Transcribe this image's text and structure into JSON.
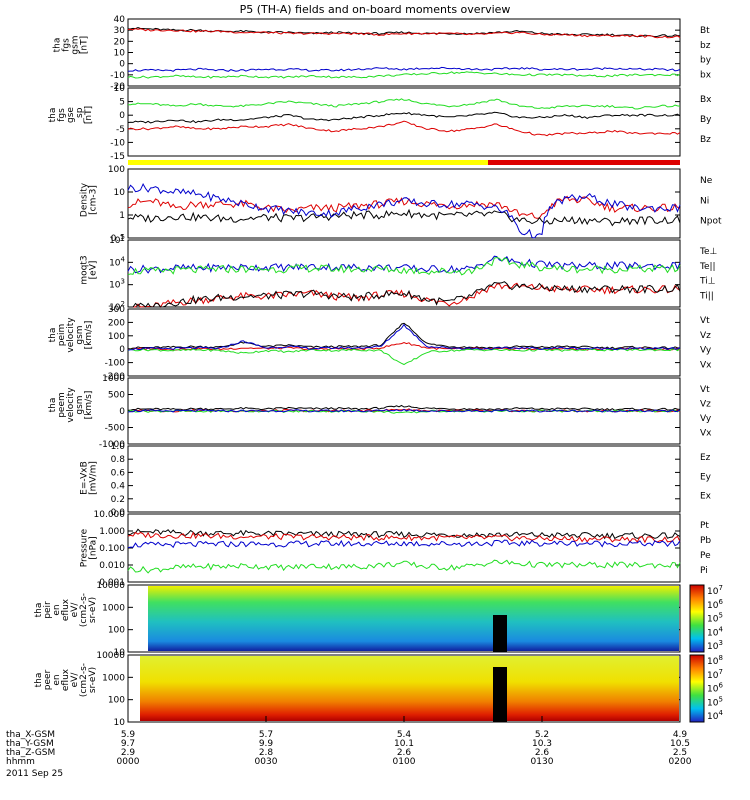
{
  "title": "P5 (TH-A) fields and on-board moments overview",
  "colors": {
    "black": "#000000",
    "red": "#dd0000",
    "green": "#22dd22",
    "blue": "#0000cc",
    "yellow": "#ffff00"
  },
  "chart_data": [
    {
      "type": "line",
      "id": "p1",
      "ylabel": "tha\nfgs\ngsm\n[nT]",
      "ylim": [
        -20,
        40
      ],
      "ticks": [
        "40",
        "30",
        "20",
        "10",
        "0",
        "-10",
        "-20"
      ],
      "series": [
        {
          "name": "Bt",
          "color": "black",
          "values": [
            32,
            31,
            30,
            30,
            29,
            29,
            28,
            28,
            27,
            28,
            27,
            27,
            28,
            27,
            27,
            27,
            28,
            29,
            27,
            26,
            26,
            26,
            25,
            25,
            25
          ]
        },
        {
          "name": "bz",
          "color": "red",
          "values": [
            31,
            30,
            30,
            29,
            29,
            28,
            28,
            27,
            27,
            27,
            27,
            26,
            27,
            27,
            27,
            26,
            27,
            28,
            26,
            26,
            25,
            25,
            25,
            24,
            24
          ]
        },
        {
          "name": "by",
          "color": "green",
          "values": [
            -12,
            -12,
            -11,
            -12,
            -12,
            -11,
            -12,
            -12,
            -11,
            -12,
            -12,
            -11,
            -10,
            -9,
            -8,
            -8,
            -9,
            -10,
            -10,
            -10,
            -11,
            -11,
            -10,
            -10,
            -10
          ]
        },
        {
          "name": "bx",
          "color": "blue",
          "values": [
            -6,
            -6,
            -6,
            -5,
            -6,
            -6,
            -5,
            -5,
            -6,
            -6,
            -5,
            -4,
            -5,
            -4,
            -4,
            -5,
            -5,
            -4,
            -5,
            -5,
            -5,
            -4,
            -5,
            -5,
            -6
          ]
        }
      ]
    },
    {
      "type": "line",
      "id": "p2",
      "ylabel": "tha\nfgs\ngse\n_sp\n[nT]",
      "ylim": [
        -20,
        10
      ],
      "ticks": [
        "10",
        "5",
        "0",
        "-5",
        "-10",
        "-15"
      ],
      "series": [
        {
          "name": "Bx",
          "color": "green",
          "values": [
            3,
            3,
            2,
            3,
            2,
            2,
            3,
            4,
            3,
            2,
            3,
            4,
            5,
            3,
            2,
            3,
            5,
            2,
            1,
            2,
            2,
            2,
            1,
            2,
            2
          ]
        },
        {
          "name": "By",
          "color": "black",
          "values": [
            -5,
            -5,
            -4,
            -5,
            -4,
            -4,
            -3,
            -2,
            -4,
            -4,
            -3,
            -2,
            -1,
            -2,
            -3,
            -2,
            -1,
            -3,
            -3,
            -2,
            -3,
            -2,
            -2,
            -2,
            -2
          ]
        },
        {
          "name": "Bz",
          "color": "red",
          "values": [
            -8,
            -8,
            -7,
            -8,
            -8,
            -7,
            -7,
            -6,
            -8,
            -9,
            -8,
            -7,
            -5,
            -8,
            -9,
            -8,
            -6,
            -9,
            -11,
            -10,
            -10,
            -9,
            -10,
            -10,
            -10
          ]
        }
      ]
    },
    {
      "type": "line",
      "id": "p3",
      "ylabel": "Density\n[cm-3]",
      "yscale": "log",
      "ylim": [
        0.1,
        100
      ],
      "ticks": [
        "100",
        "10",
        "1",
        "0.1"
      ],
      "series": [
        {
          "name": "Ne",
          "color": "red",
          "values": [
            3,
            4,
            2,
            3,
            3,
            3,
            2,
            1.5,
            2,
            2,
            2.5,
            3,
            4,
            3,
            2.5,
            3,
            3,
            1,
            0.8,
            5,
            4,
            2,
            2,
            2,
            2
          ]
        },
        {
          "name": "Ni",
          "color": "black",
          "values": [
            0.8,
            0.7,
            0.9,
            0.8,
            0.7,
            0.7,
            0.8,
            0.7,
            0.8,
            0.9,
            1,
            1,
            1.2,
            1,
            0.9,
            1,
            1.1,
            0.6,
            0.5,
            0.6,
            0.6,
            0.5,
            0.6,
            0.6,
            0.6
          ]
        },
        {
          "name": "Npot",
          "color": "blue",
          "values": [
            15,
            15,
            10,
            8,
            5,
            3,
            2,
            1.5,
            1.2,
            1.2,
            2,
            3,
            4,
            3,
            3,
            3,
            2,
            0.2,
            0.1,
            5,
            6,
            3,
            2,
            2,
            2
          ]
        }
      ]
    },
    {
      "type": "line",
      "id": "p4",
      "ylabel": "moqt3\n[eV]",
      "yscale": "log",
      "ylim": [
        100,
        100000
      ],
      "ticks": [
        "10^5",
        "10^4",
        "10^3",
        "10^2"
      ],
      "series": [
        {
          "name": "Te⊥",
          "color": "red",
          "values": [
            90,
            100,
            150,
            200,
            250,
            300,
            300,
            350,
            400,
            300,
            250,
            350,
            400,
            200,
            150,
            300,
            900,
            800,
            700,
            600,
            600,
            600,
            600,
            600,
            600
          ]
        },
        {
          "name": "Te||",
          "color": "black",
          "values": [
            100,
            110,
            160,
            210,
            260,
            310,
            310,
            360,
            410,
            310,
            260,
            360,
            410,
            210,
            160,
            310,
            950,
            850,
            750,
            650,
            650,
            650,
            650,
            650,
            650
          ]
        },
        {
          "name": "Ti⊥",
          "color": "blue",
          "values": [
            5000,
            5000,
            5500,
            5500,
            6000,
            6000,
            6000,
            6000,
            6500,
            6000,
            6000,
            6000,
            5500,
            5000,
            5000,
            5000,
            15000,
            10000,
            8000,
            7000,
            7000,
            7000,
            7000,
            7000,
            7000
          ]
        },
        {
          "name": "Ti||",
          "color": "green",
          "values": [
            4000,
            4000,
            4500,
            4500,
            5000,
            5000,
            5000,
            5000,
            5500,
            5000,
            5000,
            5000,
            4500,
            4000,
            4000,
            4000,
            12000,
            8000,
            6000,
            5000,
            5000,
            5000,
            5000,
            5000,
            5000
          ]
        }
      ]
    },
    {
      "type": "line",
      "id": "p5",
      "ylabel": "tha\npeim\nvelocity\ngsm\n[km/s]",
      "ylim": [
        -200,
        300
      ],
      "ticks": [
        "300",
        "200",
        "100",
        "0",
        "-100",
        "-200"
      ],
      "series": [
        {
          "name": "Vt",
          "color": "black",
          "values": [
            10,
            12,
            15,
            20,
            15,
            50,
            20,
            30,
            15,
            20,
            20,
            30,
            200,
            40,
            20,
            15,
            10,
            20,
            15,
            20,
            15,
            10,
            15,
            10,
            10
          ]
        },
        {
          "name": "Vz",
          "color": "red",
          "values": [
            0,
            5,
            0,
            5,
            0,
            10,
            5,
            10,
            0,
            5,
            0,
            10,
            50,
            10,
            0,
            5,
            0,
            5,
            0,
            5,
            0,
            0,
            5,
            0,
            0
          ]
        },
        {
          "name": "Vy",
          "color": "green",
          "values": [
            -5,
            -5,
            -10,
            -5,
            -10,
            -30,
            -10,
            -20,
            -5,
            -10,
            -5,
            -10,
            -120,
            -20,
            -10,
            -5,
            -5,
            -10,
            -5,
            -10,
            -5,
            -5,
            -5,
            -5,
            -5
          ]
        },
        {
          "name": "Vx",
          "color": "blue",
          "values": [
            0,
            5,
            5,
            10,
            5,
            60,
            10,
            20,
            5,
            10,
            10,
            20,
            180,
            20,
            10,
            5,
            5,
            10,
            5,
            10,
            5,
            5,
            5,
            5,
            5
          ]
        }
      ]
    },
    {
      "type": "line",
      "id": "p6",
      "ylabel": "tha\npeem\nvelocity\ngsm\n[km/s]",
      "ylim": [
        -1000,
        1000
      ],
      "ticks": [
        "1000",
        "500",
        "0",
        "-500",
        "-1000"
      ],
      "series": [
        {
          "name": "Vt",
          "color": "black",
          "values": [
            50,
            60,
            50,
            70,
            60,
            80,
            60,
            90,
            70,
            80,
            60,
            90,
            150,
            80,
            70,
            60,
            50,
            80,
            60,
            70,
            60,
            50,
            60,
            50,
            50
          ]
        },
        {
          "name": "Vz",
          "color": "red",
          "values": [
            0,
            10,
            0,
            20,
            0,
            10,
            0,
            20,
            0,
            10,
            0,
            20,
            50,
            10,
            0,
            10,
            0,
            10,
            0,
            10,
            0,
            0,
            10,
            0,
            0
          ]
        },
        {
          "name": "Vy",
          "color": "green",
          "values": [
            0,
            -10,
            0,
            -20,
            0,
            -10,
            0,
            -20,
            0,
            -10,
            0,
            -20,
            -60,
            -10,
            0,
            -10,
            0,
            -10,
            0,
            -10,
            0,
            0,
            -10,
            0,
            0
          ]
        },
        {
          "name": "Vx",
          "color": "blue",
          "values": [
            0,
            5,
            0,
            10,
            0,
            5,
            0,
            10,
            0,
            5,
            0,
            10,
            30,
            5,
            0,
            5,
            0,
            5,
            0,
            5,
            0,
            0,
            5,
            0,
            0
          ]
        }
      ]
    },
    {
      "type": "line",
      "id": "p7",
      "ylabel": "E=-VxB\n[mV/m]",
      "ylim": [
        0,
        1
      ],
      "ticks": [
        "1.0",
        "0.8",
        "0.6",
        "0.4",
        "0.2",
        "0.0"
      ],
      "series": [
        {
          "name": "Ez",
          "color": "red",
          "values": []
        },
        {
          "name": "Ey",
          "color": "green",
          "values": []
        },
        {
          "name": "Ex",
          "color": "blue",
          "values": []
        }
      ]
    },
    {
      "type": "line",
      "id": "p8",
      "ylabel": "Pressure\n[nPa]",
      "yscale": "log",
      "ylim": [
        0.001,
        10
      ],
      "ticks": [
        "10.000",
        "1.000",
        "0.100",
        "0.010",
        "0.001"
      ],
      "series": [
        {
          "name": "Pt",
          "color": "black",
          "values": [
            0.9,
            0.85,
            0.8,
            0.78,
            0.75,
            0.72,
            0.7,
            0.68,
            0.66,
            0.65,
            0.64,
            0.63,
            0.63,
            0.62,
            0.61,
            0.6,
            0.62,
            0.6,
            0.58,
            0.56,
            0.55,
            0.54,
            0.53,
            0.52,
            0.52
          ]
        },
        {
          "name": "Pb",
          "color": "red",
          "values": [
            0.6,
            0.58,
            0.55,
            0.53,
            0.5,
            0.48,
            0.46,
            0.45,
            0.44,
            0.43,
            0.42,
            0.41,
            0.41,
            0.4,
            0.4,
            0.39,
            0.4,
            0.38,
            0.36,
            0.35,
            0.34,
            0.33,
            0.33,
            0.32,
            0.32
          ]
        },
        {
          "name": "Pe",
          "color": "green",
          "values": [
            0.006,
            0.005,
            0.007,
            0.008,
            0.008,
            0.009,
            0.008,
            0.007,
            0.009,
            0.008,
            0.008,
            0.01,
            0.012,
            0.008,
            0.007,
            0.009,
            0.015,
            0.012,
            0.01,
            0.01,
            0.01,
            0.01,
            0.01,
            0.01,
            0.01
          ]
        },
        {
          "name": "Pi",
          "color": "blue",
          "values": [
            0.15,
            0.15,
            0.16,
            0.16,
            0.17,
            0.17,
            0.17,
            0.17,
            0.18,
            0.18,
            0.18,
            0.18,
            0.19,
            0.18,
            0.18,
            0.18,
            0.2,
            0.19,
            0.19,
            0.19,
            0.19,
            0.18,
            0.18,
            0.18,
            0.18
          ]
        }
      ]
    },
    {
      "type": "heatmap",
      "id": "s1",
      "ylabel": "tha\npeir\nen\neflux\neV/\n(cm2-s-\nsr-eV)",
      "yscale": "log",
      "ylim": [
        5,
        20000
      ],
      "ticks": [
        "10000",
        "1000",
        "100",
        "10"
      ],
      "colorbar": {
        "ticks": [
          "10^7",
          "10^6",
          "10^5",
          "10^4",
          "10^3"
        ]
      }
    },
    {
      "type": "heatmap",
      "id": "s2",
      "ylabel": "tha\npeer\nen\neflux\neV/\n(cm2-s-\nsr-eV)",
      "yscale": "log",
      "ylim": [
        5,
        20000
      ],
      "ticks": [
        "10000",
        "1000",
        "100",
        "10"
      ],
      "colorbar": {
        "ticks": [
          "10^8",
          "10^7",
          "10^6",
          "10^5",
          "10^4"
        ]
      }
    }
  ],
  "footer": {
    "rows": [
      "tha_X-GSM",
      "tha_Y-GSM",
      "tha_Z-GSM",
      "hhmm"
    ],
    "columns": [
      [
        "5.9",
        "9.7",
        "2.9",
        "0000"
      ],
      [
        "5.7",
        "9.9",
        "2.8",
        "0030"
      ],
      [
        "5.4",
        "10.1",
        "2.6",
        "0100"
      ],
      [
        "5.2",
        "10.3",
        "2.6",
        "0130"
      ],
      [
        "4.9",
        "10.5",
        "2.5",
        "0200"
      ]
    ],
    "date": "2011 Sep 25"
  }
}
